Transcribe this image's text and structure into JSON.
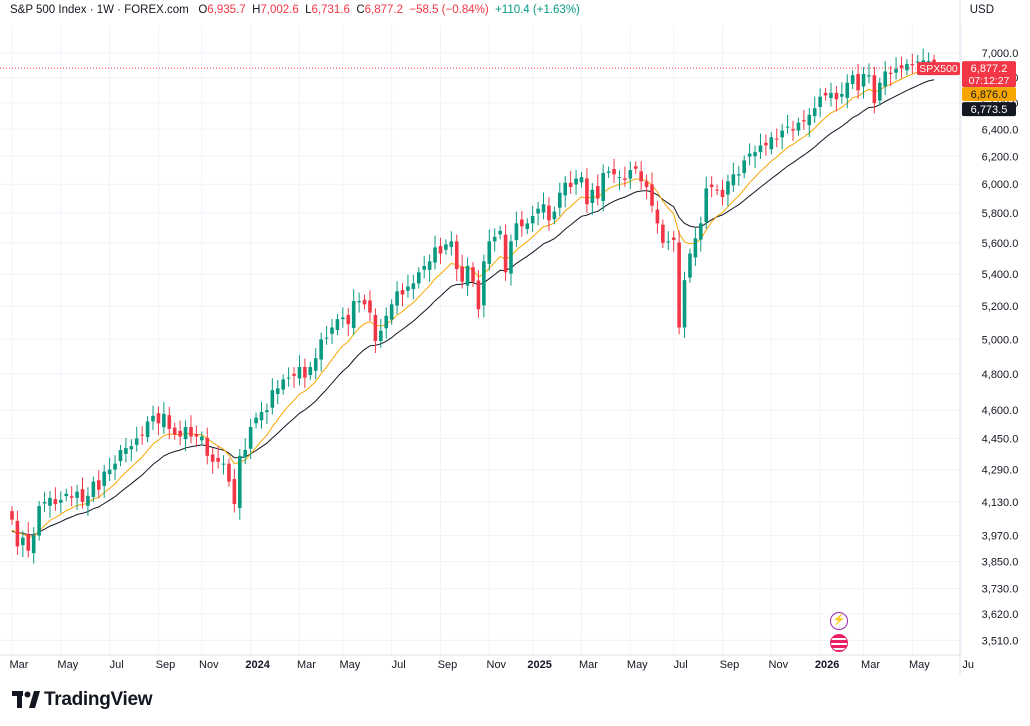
{
  "header": {
    "symbol": "S&P 500 Index · 1W · FOREX.com",
    "open_label": "O",
    "open": "6,935.7",
    "high_label": "H",
    "high": "7,002.6",
    "low_label": "L",
    "low": "6,731.6",
    "close_label": "C",
    "close": "6,877.2",
    "change": "−58.5 (−0.84%)",
    "change2": "+110.4 (+1.63%)",
    "currency": "USD"
  },
  "branding": {
    "name": "TradingView"
  },
  "colors": {
    "up": "#089981",
    "down": "#f23645",
    "ema_fast": "#f7a600",
    "ema_slow": "#131722",
    "grid": "#f0f3fa"
  },
  "chart_data": {
    "type": "candlestick",
    "y_scale": "log",
    "ylim": [
      3450,
      7150
    ],
    "y_ticks": [
      "3,510.0",
      "3,620.0",
      "3,730.0",
      "3,850.0",
      "3,970.0",
      "4,130.0",
      "4,290.0",
      "4,450.0",
      "4,600.0",
      "4,800.0",
      "5,000.0",
      "5,200.0",
      "5,400.0",
      "5,600.0",
      "5,800.0",
      "6,000.0",
      "6,200.0",
      "6,400.0",
      "6,600.0",
      "6,800.0",
      "7,000.0"
    ],
    "x_ticks": [
      {
        "label": "Mar",
        "w": 0,
        "bold": false
      },
      {
        "label": "May",
        "w": 9,
        "bold": false
      },
      {
        "label": "Jul",
        "w": 18,
        "bold": false
      },
      {
        "label": "Sep",
        "w": 27,
        "bold": false
      },
      {
        "label": "Nov",
        "w": 35,
        "bold": false
      },
      {
        "label": "2024",
        "w": 44,
        "bold": true
      },
      {
        "label": "Mar",
        "w": 53,
        "bold": false
      },
      {
        "label": "May",
        "w": 61,
        "bold": false
      },
      {
        "label": "Jul",
        "w": 70,
        "bold": false
      },
      {
        "label": "Sep",
        "w": 79,
        "bold": false
      },
      {
        "label": "Nov",
        "w": 88,
        "bold": false
      },
      {
        "label": "2025",
        "w": 96,
        "bold": true
      },
      {
        "label": "Mar",
        "w": 105,
        "bold": false
      },
      {
        "label": "May",
        "w": 114,
        "bold": false
      },
      {
        "label": "Jul",
        "w": 122,
        "bold": false
      },
      {
        "label": "Sep",
        "w": 131,
        "bold": false
      },
      {
        "label": "Nov",
        "w": 140,
        "bold": false
      },
      {
        "label": "2026",
        "w": 149,
        "bold": true
      },
      {
        "label": "Mar",
        "w": 157,
        "bold": false
      },
      {
        "label": "May",
        "w": 166,
        "bold": false
      },
      {
        "label": "Ju",
        "w": 175,
        "bold": false
      }
    ],
    "weeks_visible": 177,
    "closes": [
      4045,
      3920,
      3960,
      3900,
      3970,
      4110,
      4130,
      4150,
      4120,
      4140,
      4170,
      4150,
      4180,
      4130,
      4160,
      4230,
      4190,
      4280,
      4290,
      4320,
      4390,
      4400,
      4410,
      4450,
      4470,
      4540,
      4570,
      4530,
      4580,
      4500,
      4470,
      4460,
      4510,
      4460,
      4460,
      4460,
      4360,
      4330,
      4330,
      4320,
      4230,
      4120,
      4360,
      4390,
      4510,
      4560,
      4590,
      4600,
      4710,
      4720,
      4770,
      4780,
      4790,
      4840,
      4780,
      4840,
      4890,
      5000,
      5010,
      5070,
      5120,
      5130,
      5090,
      5230,
      5230,
      5210,
      5160,
      4990,
      5050,
      5140,
      5210,
      5290,
      5270,
      5320,
      5340,
      5410,
      5450,
      5480,
      5570,
      5530,
      5590,
      5610,
      5430,
      5350,
      5450,
      5350,
      5180,
      5480,
      5610,
      5640,
      5680,
      5410,
      5610,
      5730,
      5710,
      5730,
      5780,
      5830,
      5860,
      5750,
      5810,
      5940,
      6010,
      5980,
      6040,
      6050,
      5860,
      5960,
      5900,
      6080,
      6090,
      6070,
      6050,
      6030,
      6100,
      6110,
      6020,
      5980,
      5850,
      5730,
      5600,
      5610,
      5620,
      5070,
      5360,
      5530,
      5630,
      5730,
      5970,
      5980,
      5960,
      5910,
      6020,
      6070,
      6070,
      6170,
      6220,
      6230,
      6280,
      6280,
      6340,
      6330,
      6390,
      6420,
      6390,
      6450,
      6460,
      6510,
      6560,
      6650,
      6660,
      6680,
      6630,
      6670,
      6760,
      6820,
      6700,
      6830,
      6820,
      6600,
      6760,
      6850,
      6830,
      6870,
      6880,
      6910,
      6900,
      6930,
      6940,
      6935,
      6877
    ],
    "last_price": "6,877.2",
    "countdown": "07:12:27",
    "ema_fast_last": "6,876.0",
    "ema_slow_last": "6,773.5",
    "symbol_badge": "SPX500"
  }
}
